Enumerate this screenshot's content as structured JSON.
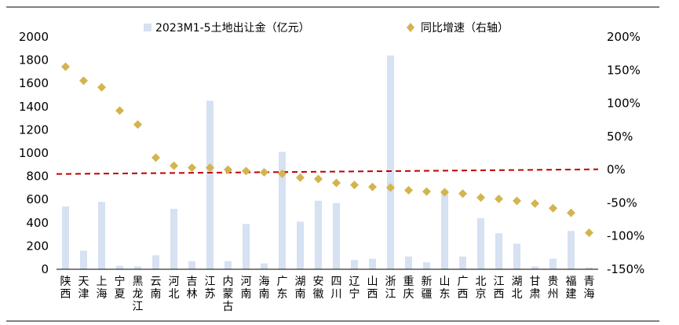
{
  "chart_data": {
    "type": "bar+scatter",
    "legend": [
      {
        "label": "2023M1-5土地出让金（亿元）",
        "marker": "bar",
        "color": "#d6e1f2"
      },
      {
        "label": "同比增速（右轴）",
        "marker": "diamond",
        "color": "#d3b44e"
      }
    ],
    "categories": [
      "陕西",
      "天津",
      "上海",
      "宁夏",
      "黑龙江",
      "云南",
      "河北",
      "吉林",
      "江苏",
      "内蒙古",
      "河南",
      "海南",
      "广东",
      "湖南",
      "安徽",
      "四川",
      "辽宁",
      "山西",
      "浙江",
      "重庆",
      "新疆",
      "山东",
      "广西",
      "北京",
      "江西",
      "湖北",
      "甘肃",
      "贵州",
      "福建",
      "青海"
    ],
    "left_axis": {
      "ylim": [
        0,
        2000
      ],
      "ticks": [
        "0",
        "200",
        "400",
        "600",
        "800",
        "1000",
        "1200",
        "1400",
        "1600",
        "1800",
        "2000"
      ]
    },
    "right_axis": {
      "ylim": [
        -150,
        200
      ],
      "ticks": [
        "-150%",
        "-100%",
        "-50%",
        "0%",
        "50%",
        "100%",
        "150%",
        "200%"
      ]
    },
    "bar_values": [
      540,
      160,
      580,
      30,
      25,
      120,
      520,
      70,
      1450,
      70,
      390,
      50,
      1010,
      410,
      590,
      570,
      80,
      90,
      1840,
      110,
      60,
      680,
      110,
      440,
      310,
      220,
      25,
      90,
      330,
      15
    ],
    "growth_values": [
      155,
      134,
      124,
      89,
      68,
      18,
      6,
      3,
      3,
      0,
      -2,
      -4,
      -6,
      -12,
      -14,
      -20,
      -23,
      -26,
      -27,
      -31,
      -33,
      -34,
      -36,
      -42,
      -44,
      -47,
      -51,
      -58,
      -65,
      -95
    ],
    "reference_line_right": -3
  },
  "colors": {
    "bar": "#d6e1f2",
    "marker": "#d3b44e",
    "ref_line": "#c00000",
    "axis": "#000000"
  }
}
